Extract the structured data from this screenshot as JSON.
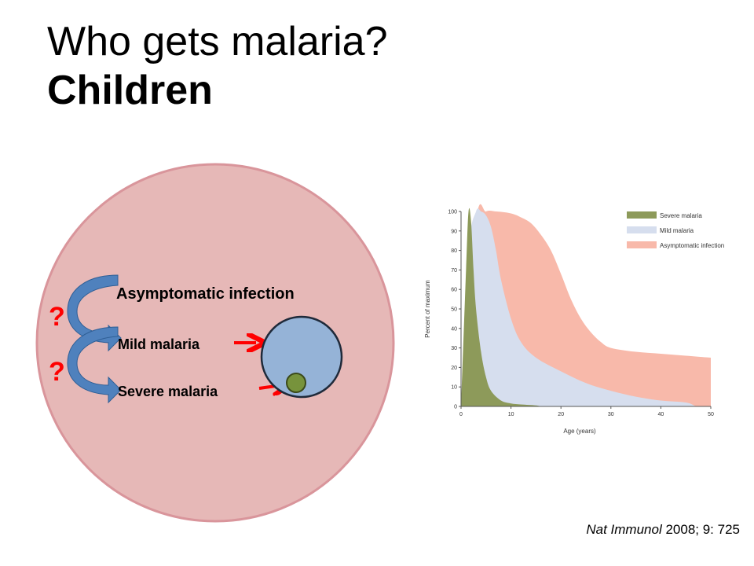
{
  "slide": {
    "title_line1": "Who gets malaria?",
    "title_line2": "Children",
    "citation_journal": "Nat Immunol",
    "citation_rest": " 2008; 9: 725"
  },
  "diagram": {
    "labels": [
      "Asymptomatic infection",
      "Mild malaria",
      "Severe malaria"
    ],
    "question_mark": "?",
    "colors": {
      "outer_circle": "#e6b8b7",
      "outer_stroke": "#d9959b",
      "inner_circle": "#95b3d7",
      "inner_stroke": "#1f2a3a",
      "small_circle": "#77933c",
      "arrow_blue": "#4f81bd",
      "arrow_red": "#ff0000",
      "question": "#ff0000"
    }
  },
  "chart_data": {
    "type": "area",
    "title": "",
    "xlabel": "Age (years)",
    "ylabel": "Percent of maximum",
    "xlim": [
      0,
      50
    ],
    "ylim": [
      0,
      100
    ],
    "x_ticks": [
      0,
      10,
      20,
      30,
      40,
      50
    ],
    "y_ticks": [
      0,
      10,
      20,
      30,
      40,
      50,
      60,
      70,
      80,
      90,
      100
    ],
    "legend_position": "top-right",
    "series": [
      {
        "name": "Asymptomatic infection",
        "color": "#f8b9aa",
        "x": [
          0,
          3,
          5,
          7,
          10,
          12,
          14,
          16,
          18,
          20,
          22,
          24,
          26,
          28,
          30,
          35,
          40,
          45,
          50
        ],
        "y": [
          0,
          95,
          100,
          100,
          99,
          97,
          94,
          88,
          80,
          68,
          55,
          45,
          38,
          33,
          30,
          28,
          27,
          26,
          25
        ]
      },
      {
        "name": "Mild malaria",
        "color": "#d6deee",
        "x": [
          0,
          1.5,
          3,
          4,
          5,
          6,
          7,
          8,
          10,
          12,
          15,
          20,
          25,
          30,
          35,
          40,
          45,
          47
        ],
        "y": [
          0,
          80,
          100,
          100,
          98,
          92,
          80,
          65,
          45,
          33,
          25,
          18,
          12,
          8,
          5,
          3,
          2,
          0
        ]
      },
      {
        "name": "Severe malaria",
        "color": "#8d9a5a",
        "x": [
          0,
          1,
          1.5,
          2,
          2.5,
          3,
          4,
          5,
          6,
          8,
          10,
          12,
          15,
          16
        ],
        "y": [
          0,
          70,
          100,
          95,
          70,
          50,
          28,
          15,
          8,
          3,
          1.5,
          1,
          0.5,
          0
        ]
      }
    ]
  }
}
